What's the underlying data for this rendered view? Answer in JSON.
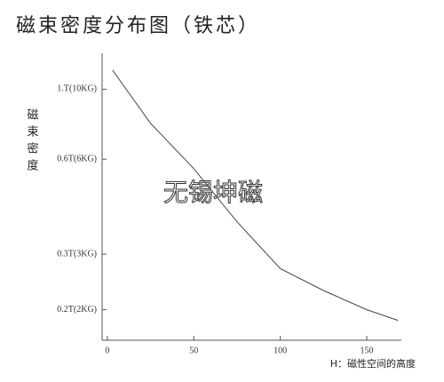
{
  "chart_data": {
    "type": "line",
    "title": "磁束密度分布图（铁芯）",
    "y_label": "磁束密度",
    "x_label": "H：磁性空间的高度",
    "watermark": "无锡坤磁",
    "log_y": true,
    "x": [
      3,
      25,
      50,
      75,
      100,
      125,
      150,
      168
    ],
    "series": [
      {
        "color": "#444444",
        "values": [
          1.15,
          0.78,
          0.56,
          0.38,
          0.27,
          0.23,
          0.2,
          0.185
        ]
      }
    ],
    "xlim": [
      -3,
      170
    ],
    "xticks": [
      0,
      50,
      100,
      150
    ],
    "ylim": [
      0.16,
      1.3
    ],
    "yticks": [
      {
        "value": 1,
        "label": "1.T(10KG)"
      },
      {
        "value": 0.6,
        "label": "0.6T(6KG)"
      },
      {
        "value": 0.3,
        "label": "0.3T(3KG)"
      },
      {
        "value": 0.2,
        "label": "0.2T(2KG)"
      }
    ]
  }
}
